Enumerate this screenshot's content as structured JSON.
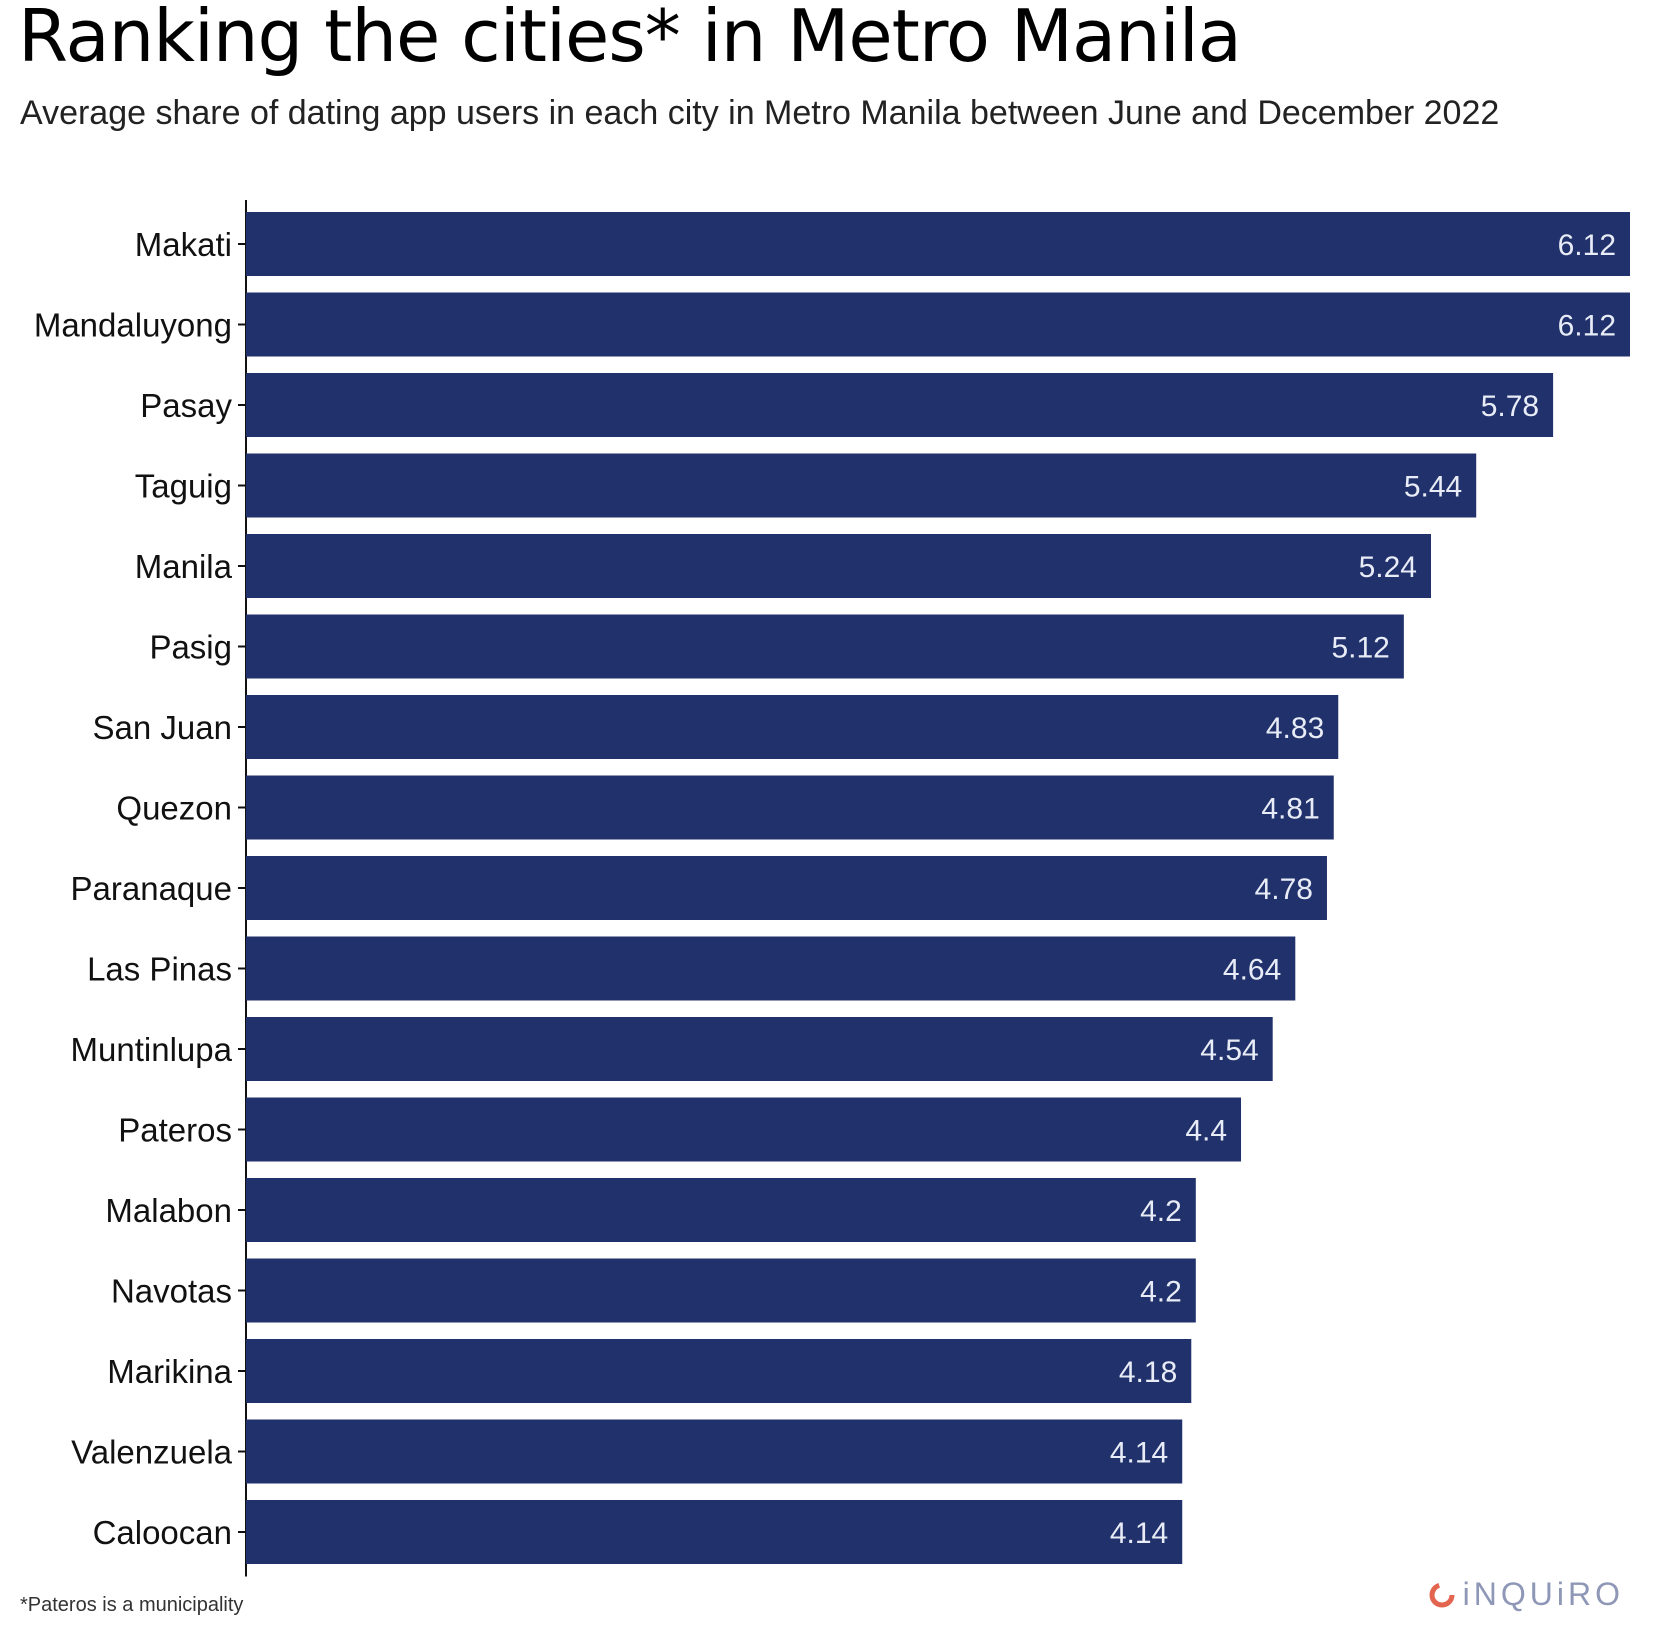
{
  "header": {
    "title": "Ranking the cities* in Metro Manila",
    "subtitle": "Average share of dating app users in each city in Metro Manila between June and December 2022"
  },
  "footer": {
    "footnote": "*Pateros is a municipality",
    "brand": "iNQUiRO"
  },
  "colors": {
    "bar": "#21316b",
    "bar_label": "#e8ecf6",
    "brand_accent": "#e4654f",
    "brand_text": "#8e97b6"
  },
  "chart_data": {
    "type": "bar",
    "orientation": "horizontal",
    "categories": [
      "Makati",
      "Mandaluyong",
      "Pasay",
      "Taguig",
      "Manila",
      "Pasig",
      "San Juan",
      "Quezon",
      "Paranaque",
      "Las Pinas",
      "Muntinlupa",
      "Pateros",
      "Malabon",
      "Navotas",
      "Marikina",
      "Valenzuela",
      "Caloocan"
    ],
    "values": [
      6.12,
      6.12,
      5.78,
      5.44,
      5.24,
      5.12,
      4.83,
      4.81,
      4.78,
      4.64,
      4.54,
      4.4,
      4.2,
      4.2,
      4.18,
      4.14,
      4.14
    ],
    "value_labels": [
      "6.12",
      "6.12",
      "5.78",
      "5.44",
      "5.24",
      "5.12",
      "4.83",
      "4.81",
      "4.78",
      "4.64",
      "4.54",
      "4.4",
      "4.2",
      "4.2",
      "4.18",
      "4.14",
      "4.14"
    ],
    "xlim": [
      0,
      6.12
    ],
    "grid": false,
    "legend": "none",
    "title": "Ranking the cities* in Metro Manila",
    "subtitle": "Average share of dating app users in each city in Metro Manila between June and December 2022"
  }
}
